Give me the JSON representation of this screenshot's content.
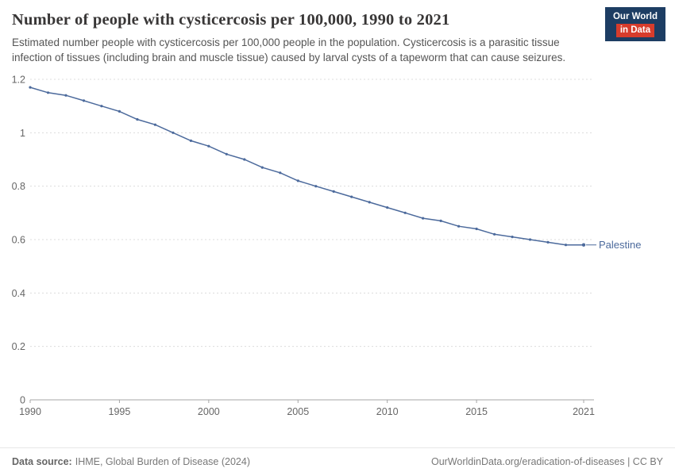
{
  "header": {
    "title": "Number of people with cysticercosis per 100,000, 1990 to 2021",
    "subtitle": "Estimated number people with cysticercosis per 100,000 people in the population. Cysticercosis is a parasitic tissue infection of tissues (including brain and muscle tissue) caused by larval cysts of a tapeworm that can cause seizures.",
    "logo": {
      "line1": "Our World",
      "line2": "in Data"
    }
  },
  "chart_data": {
    "type": "line",
    "title": "Number of people with cysticercosis per 100,000, 1990 to 2021",
    "xlabel": "",
    "ylabel": "",
    "x": [
      1990,
      1991,
      1992,
      1993,
      1994,
      1995,
      1996,
      1997,
      1998,
      1999,
      2000,
      2001,
      2002,
      2003,
      2004,
      2005,
      2006,
      2007,
      2008,
      2009,
      2010,
      2011,
      2012,
      2013,
      2014,
      2015,
      2016,
      2017,
      2018,
      2019,
      2020,
      2021
    ],
    "series": [
      {
        "name": "Palestine",
        "color": "#4C6A9C",
        "values": [
          1.17,
          1.15,
          1.14,
          1.12,
          1.1,
          1.08,
          1.05,
          1.03,
          1.0,
          0.97,
          0.95,
          0.92,
          0.9,
          0.87,
          0.85,
          0.82,
          0.8,
          0.78,
          0.76,
          0.74,
          0.72,
          0.7,
          0.68,
          0.67,
          0.65,
          0.64,
          0.62,
          0.61,
          0.6,
          0.59,
          0.58,
          0.58
        ]
      }
    ],
    "xlim": [
      1990,
      2021
    ],
    "ylim": [
      0,
      1.2
    ],
    "yticks": [
      0,
      0.2,
      0.4,
      0.6,
      0.8,
      1,
      1.2
    ],
    "xticks": [
      1990,
      1995,
      2000,
      2005,
      2010,
      2015,
      2021
    ],
    "grid": true,
    "legend_position": "end-of-line"
  },
  "footer": {
    "source_label": "Data source:",
    "source": "IHME, Global Burden of Disease (2024)",
    "right": "OurWorldinData.org/eradication-of-diseases | CC BY"
  }
}
